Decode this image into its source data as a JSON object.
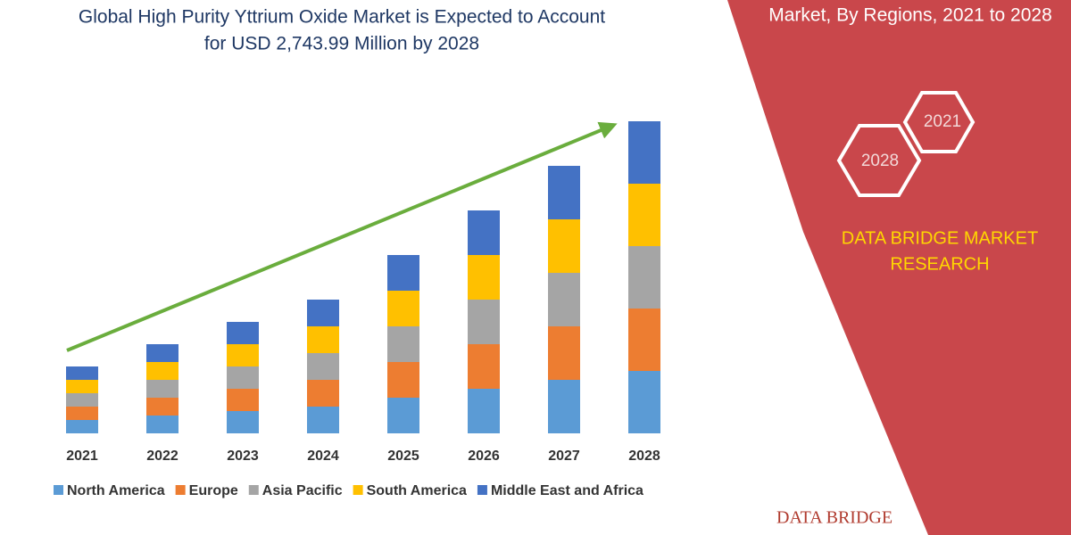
{
  "chart_data": {
    "type": "bar",
    "stacked": true,
    "title": [
      "Global High Purity Yttrium Oxide Market is Expected to Account",
      "for USD 2,743.99 Million by 2028"
    ],
    "categories": [
      "2021",
      "2022",
      "2023",
      "2024",
      "2025",
      "2026",
      "2027",
      "2028"
    ],
    "series": [
      {
        "name": "North America",
        "color": "#5b9bd5",
        "values": [
          15,
          20,
          25,
          30,
          40,
          50,
          60,
          70
        ]
      },
      {
        "name": "Europe",
        "color": "#ed7d31",
        "values": [
          15,
          20,
          25,
          30,
          40,
          50,
          60,
          70
        ]
      },
      {
        "name": "Asia Pacific",
        "color": "#a5a5a5",
        "values": [
          15,
          20,
          25,
          30,
          40,
          50,
          60,
          70
        ]
      },
      {
        "name": "South America",
        "color": "#ffc000",
        "values": [
          15,
          20,
          25,
          30,
          40,
          50,
          60,
          70
        ]
      },
      {
        "name": "Middle East and Africa",
        "color": "#4472c4",
        "values": [
          15,
          20,
          25,
          30,
          40,
          50,
          60,
          70
        ]
      }
    ]
  },
  "panel": {
    "heading": "Market, By Regions, 2021 to 2028",
    "hexagons": [
      "2021",
      "2028"
    ],
    "brand": [
      "DATA BRIDGE MARKET",
      "RESEARCH"
    ],
    "logo": "DATA BRIDGE"
  }
}
